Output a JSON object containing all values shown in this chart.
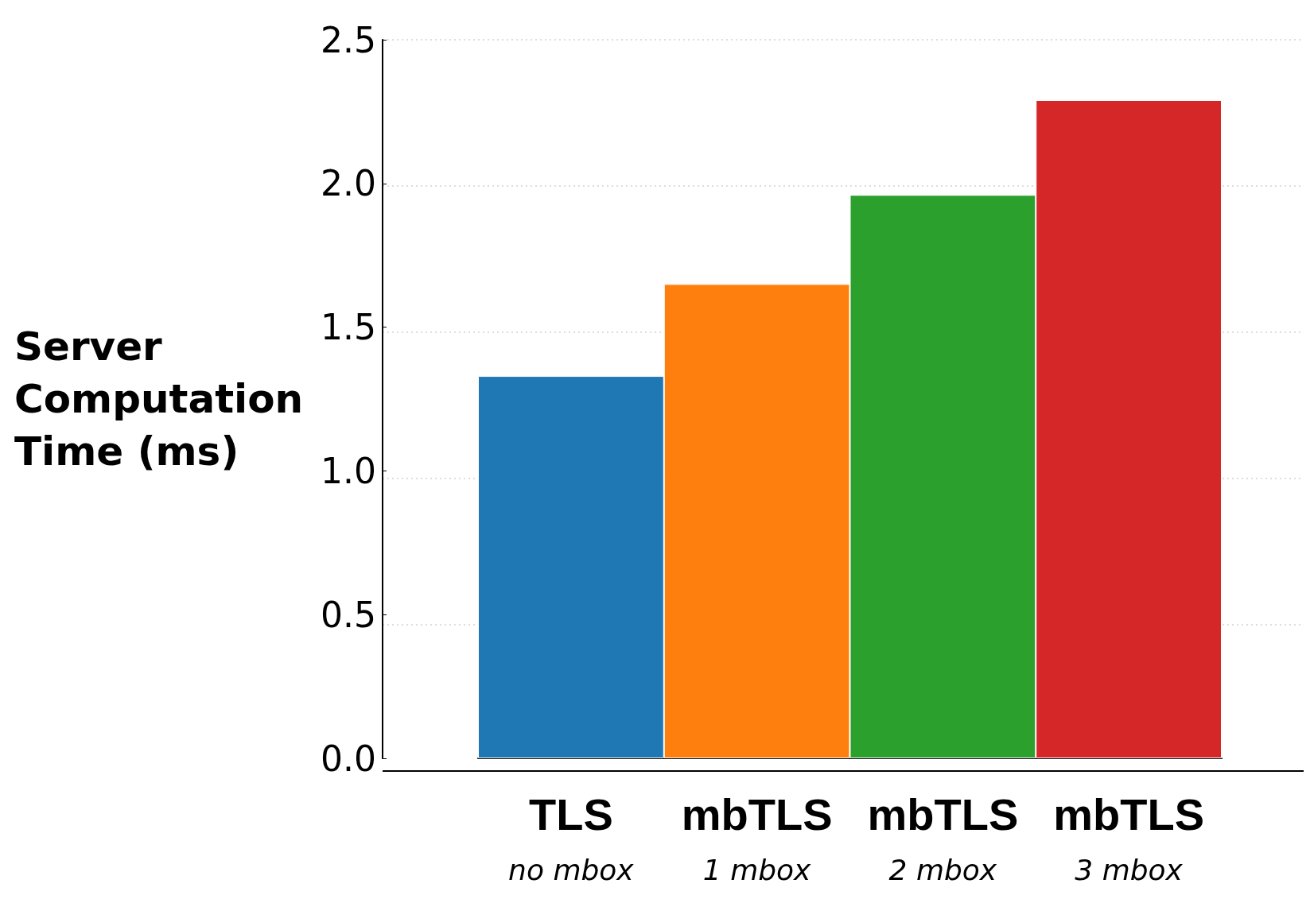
{
  "chart_data": {
    "type": "bar",
    "ylabel": "Server Computation Time (ms)",
    "categories": [
      "TLS\nno mbox",
      "mbTLS\n1 mbox",
      "mbTLS\n2 mbox",
      "mbTLS\n3 mbox"
    ],
    "values": [
      1.33,
      1.65,
      1.96,
      2.29
    ],
    "colors": [
      "#1f77b4",
      "#ff7f0e",
      "#2ca02c",
      "#d62728"
    ],
    "ylim": [
      0,
      2.5
    ],
    "yticks": [
      "0.0",
      0.5,
      "1.0",
      1.5,
      "2.0",
      2.5
    ],
    "grid": "y"
  }
}
